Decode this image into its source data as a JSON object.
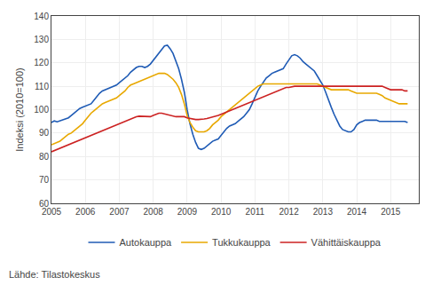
{
  "chart_data": {
    "type": "line",
    "ylabel": "Indeksi (2010=100)",
    "annotations": [
      "Lähde: Tilastokeskus"
    ],
    "xlim": [
      2005.0,
      2015.83
    ],
    "xticks": [
      2005,
      2006,
      2007,
      2008,
      2009,
      2010,
      2011,
      2012,
      2013,
      2014,
      2015
    ],
    "ylim": [
      60,
      140
    ],
    "yticks": [
      60,
      70,
      80,
      90,
      100,
      110,
      120,
      130,
      140
    ],
    "grid": true,
    "legend": "bottom",
    "x": [
      2005.0,
      2005.083,
      2005.167,
      2005.25,
      2005.333,
      2005.417,
      2005.5,
      2005.583,
      2005.667,
      2005.75,
      2005.833,
      2005.917,
      2006.0,
      2006.083,
      2006.167,
      2006.25,
      2006.333,
      2006.417,
      2006.5,
      2006.583,
      2006.667,
      2006.75,
      2006.833,
      2006.917,
      2007.0,
      2007.083,
      2007.167,
      2007.25,
      2007.333,
      2007.417,
      2007.5,
      2007.583,
      2007.667,
      2007.75,
      2007.833,
      2007.917,
      2008.0,
      2008.083,
      2008.167,
      2008.25,
      2008.333,
      2008.417,
      2008.5,
      2008.583,
      2008.667,
      2008.75,
      2008.833,
      2008.917,
      2009.0,
      2009.083,
      2009.167,
      2009.25,
      2009.333,
      2009.417,
      2009.5,
      2009.583,
      2009.667,
      2009.75,
      2009.833,
      2009.917,
      2010.0,
      2010.083,
      2010.167,
      2010.25,
      2010.333,
      2010.417,
      2010.5,
      2010.583,
      2010.667,
      2010.75,
      2010.833,
      2010.917,
      2011.0,
      2011.083,
      2011.167,
      2011.25,
      2011.333,
      2011.417,
      2011.5,
      2011.583,
      2011.667,
      2011.75,
      2011.833,
      2011.917,
      2012.0,
      2012.083,
      2012.167,
      2012.25,
      2012.333,
      2012.417,
      2012.5,
      2012.583,
      2012.667,
      2012.75,
      2012.833,
      2012.917,
      2013.0,
      2013.083,
      2013.167,
      2013.25,
      2013.333,
      2013.417,
      2013.5,
      2013.583,
      2013.667,
      2013.75,
      2013.833,
      2013.917,
      2014.0,
      2014.083,
      2014.167,
      2014.25,
      2014.333,
      2014.417,
      2014.5,
      2014.583,
      2014.667,
      2014.75,
      2014.833,
      2014.917,
      2015.0,
      2015.083,
      2015.167,
      2015.25,
      2015.333,
      2015.417,
      2015.5
    ],
    "series": [
      {
        "name": "Autokauppa",
        "color": "#1F5BB5",
        "values": [
          94.5,
          95.2,
          94.8,
          95.2,
          95.5,
          96.0,
          96.5,
          97.5,
          98.5,
          99.5,
          100.5,
          101.0,
          101.5,
          102.0,
          102.5,
          104.0,
          105.5,
          107.0,
          108.0,
          108.5,
          109.0,
          109.5,
          110.0,
          110.5,
          111.5,
          112.5,
          113.5,
          114.5,
          116.0,
          117.0,
          118.0,
          118.5,
          118.5,
          118.0,
          118.5,
          119.5,
          121.0,
          122.5,
          124.0,
          125.5,
          127.2,
          127.5,
          126.0,
          124.0,
          121.0,
          117.5,
          113.0,
          107.5,
          100.0,
          94.0,
          89.5,
          86.0,
          83.5,
          83.0,
          83.5,
          84.5,
          85.5,
          86.5,
          87.0,
          87.5,
          89.0,
          90.5,
          92.0,
          93.0,
          93.5,
          94.0,
          95.0,
          96.0,
          97.0,
          98.5,
          100.0,
          102.5,
          105.5,
          108.0,
          110.0,
          112.0,
          113.5,
          114.5,
          115.5,
          116.0,
          116.5,
          117.0,
          117.5,
          119.5,
          121.5,
          123.0,
          123.5,
          123.0,
          122.0,
          120.5,
          119.5,
          118.5,
          117.5,
          116.5,
          114.5,
          112.5,
          110.5,
          107.5,
          104.0,
          101.0,
          98.0,
          95.5,
          93.0,
          91.5,
          91.0,
          90.5,
          90.5,
          91.5,
          93.5,
          94.5,
          95.0,
          95.5,
          95.5,
          95.5,
          95.5,
          95.5,
          95.0,
          95.0,
          95.0,
          95.0,
          95.0,
          95.0,
          95.0,
          95.0,
          95.0,
          95.0,
          94.5
        ]
      },
      {
        "name": "Tukkukauppa",
        "color": "#E8A800",
        "values": [
          85.0,
          85.5,
          86.0,
          86.5,
          87.5,
          88.5,
          89.5,
          90.0,
          91.0,
          92.0,
          93.0,
          94.0,
          95.5,
          97.0,
          98.5,
          99.5,
          100.5,
          101.5,
          102.5,
          103.0,
          103.5,
          104.0,
          104.5,
          105.0,
          106.0,
          107.0,
          108.0,
          109.5,
          110.5,
          111.0,
          111.5,
          112.0,
          112.5,
          113.0,
          113.5,
          114.0,
          114.5,
          115.0,
          115.5,
          115.5,
          115.5,
          115.0,
          114.0,
          113.0,
          111.5,
          109.5,
          106.5,
          102.5,
          97.5,
          94.5,
          92.5,
          91.0,
          90.5,
          90.5,
          90.5,
          91.0,
          92.0,
          93.5,
          94.5,
          95.5,
          97.0,
          98.0,
          99.0,
          100.0,
          101.0,
          102.0,
          103.0,
          104.0,
          105.0,
          106.0,
          107.0,
          108.0,
          109.0,
          110.0,
          110.5,
          111.0,
          111.0,
          111.0,
          111.0,
          111.0,
          111.0,
          111.0,
          111.0,
          111.0,
          111.0,
          111.0,
          111.0,
          111.0,
          111.0,
          111.0,
          111.0,
          111.0,
          111.0,
          111.0,
          111.0,
          110.5,
          110.0,
          109.5,
          109.0,
          108.5,
          108.5,
          108.5,
          108.5,
          108.5,
          108.5,
          108.5,
          108.0,
          107.5,
          107.0,
          107.0,
          107.0,
          107.0,
          107.0,
          107.0,
          107.0,
          107.0,
          106.5,
          106.0,
          105.0,
          104.5,
          104.0,
          103.5,
          103.0,
          102.5,
          102.5,
          102.5,
          102.5
        ]
      },
      {
        "name": "Vähittäiskauppa",
        "color": "#CC2222",
        "values": [
          82.0,
          82.5,
          83.0,
          83.5,
          84.0,
          84.5,
          85.0,
          85.5,
          86.0,
          86.5,
          87.0,
          87.5,
          88.0,
          88.5,
          89.0,
          89.5,
          90.0,
          90.5,
          91.0,
          91.5,
          92.0,
          92.5,
          93.0,
          93.5,
          94.0,
          94.5,
          95.0,
          95.5,
          96.0,
          96.5,
          97.0,
          97.2,
          97.2,
          97.0,
          97.0,
          97.0,
          97.5,
          98.0,
          98.5,
          98.5,
          98.2,
          97.8,
          97.5,
          97.2,
          97.0,
          97.0,
          97.0,
          97.0,
          96.5,
          96.2,
          96.0,
          95.8,
          95.8,
          95.8,
          96.0,
          96.2,
          96.5,
          96.8,
          97.0,
          97.5,
          98.0,
          98.5,
          99.0,
          99.5,
          100.0,
          100.5,
          101.0,
          101.5,
          102.0,
          102.5,
          103.0,
          103.5,
          104.0,
          104.5,
          105.0,
          105.5,
          106.0,
          106.5,
          107.0,
          107.5,
          108.0,
          108.5,
          109.0,
          109.5,
          109.5,
          109.8,
          110.0,
          110.0,
          110.0,
          110.0,
          110.0,
          110.0,
          110.0,
          110.0,
          110.0,
          110.0,
          110.0,
          110.0,
          110.0,
          110.0,
          110.0,
          110.0,
          110.0,
          110.0,
          110.0,
          110.0,
          110.0,
          110.0,
          110.0,
          110.0,
          110.0,
          110.0,
          110.0,
          110.0,
          110.0,
          110.0,
          110.0,
          110.0,
          109.5,
          109.0,
          108.5,
          108.5,
          108.5,
          108.5,
          108.5,
          108.0,
          108.0
        ]
      }
    ]
  }
}
